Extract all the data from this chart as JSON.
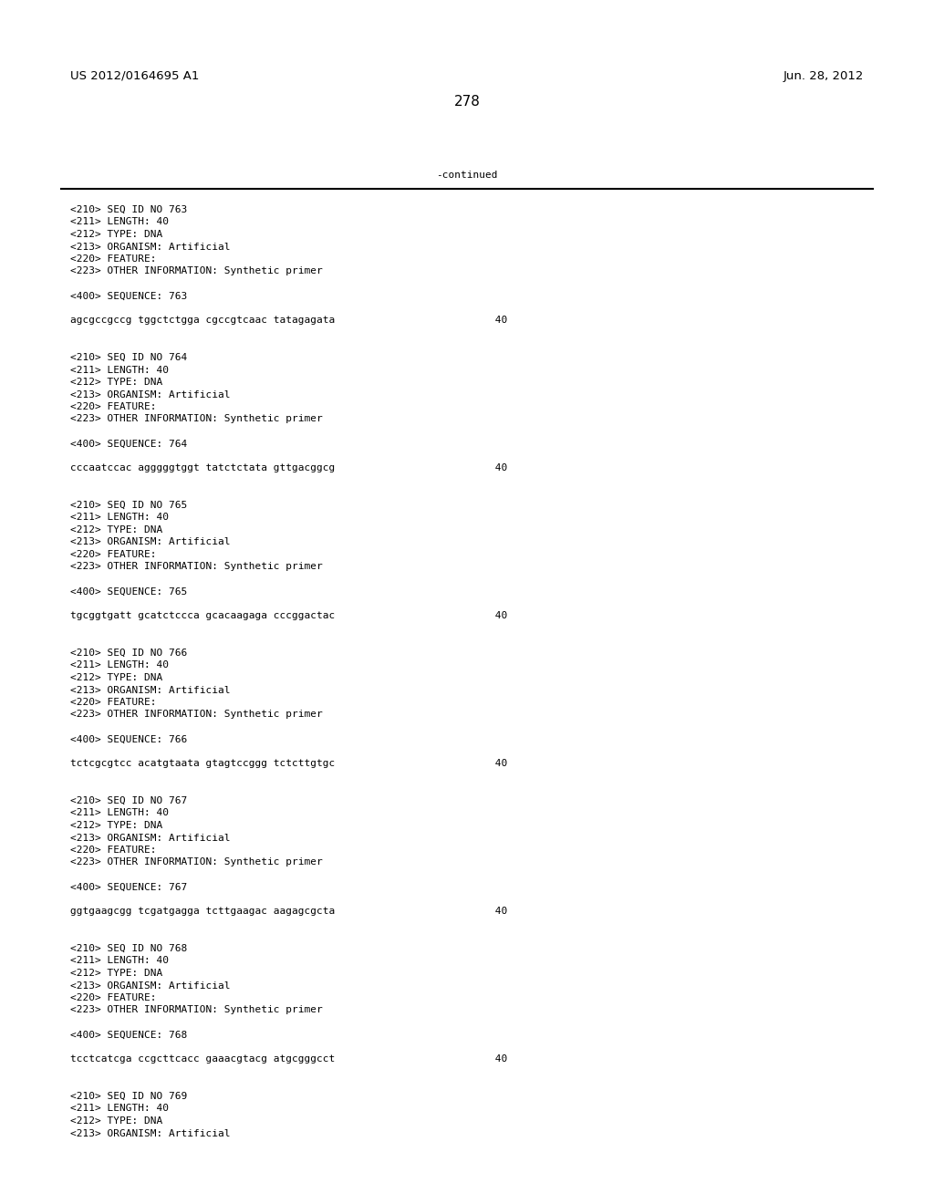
{
  "header_left": "US 2012/0164695 A1",
  "header_right": "Jun. 28, 2012",
  "page_number": "278",
  "continued_label": "-continued",
  "background_color": "#ffffff",
  "text_color": "#000000",
  "font_size_header": 9.5,
  "font_size_body": 8.0,
  "font_size_page": 11,
  "lines": [
    "<210> SEQ ID NO 763",
    "<211> LENGTH: 40",
    "<212> TYPE: DNA",
    "<213> ORGANISM: Artificial",
    "<220> FEATURE:",
    "<223> OTHER INFORMATION: Synthetic primer",
    "",
    "<400> SEQUENCE: 763",
    "",
    "agcgccgccg tggctctgga cgccgtcaac tatagagata                          40",
    "",
    "",
    "<210> SEQ ID NO 764",
    "<211> LENGTH: 40",
    "<212> TYPE: DNA",
    "<213> ORGANISM: Artificial",
    "<220> FEATURE:",
    "<223> OTHER INFORMATION: Synthetic primer",
    "",
    "<400> SEQUENCE: 764",
    "",
    "cccaatccac agggggtggt tatctctata gttgacggcg                          40",
    "",
    "",
    "<210> SEQ ID NO 765",
    "<211> LENGTH: 40",
    "<212> TYPE: DNA",
    "<213> ORGANISM: Artificial",
    "<220> FEATURE:",
    "<223> OTHER INFORMATION: Synthetic primer",
    "",
    "<400> SEQUENCE: 765",
    "",
    "tgcggtgatt gcatctccca gcacaagaga cccggactac                          40",
    "",
    "",
    "<210> SEQ ID NO 766",
    "<211> LENGTH: 40",
    "<212> TYPE: DNA",
    "<213> ORGANISM: Artificial",
    "<220> FEATURE:",
    "<223> OTHER INFORMATION: Synthetic primer",
    "",
    "<400> SEQUENCE: 766",
    "",
    "tctcgcgtcc acatgtaata gtagtccggg tctcttgtgc                          40",
    "",
    "",
    "<210> SEQ ID NO 767",
    "<211> LENGTH: 40",
    "<212> TYPE: DNA",
    "<213> ORGANISM: Artificial",
    "<220> FEATURE:",
    "<223> OTHER INFORMATION: Synthetic primer",
    "",
    "<400> SEQUENCE: 767",
    "",
    "ggtgaagcgg tcgatgagga tcttgaagac aagagcgcta                          40",
    "",
    "",
    "<210> SEQ ID NO 768",
    "<211> LENGTH: 40",
    "<212> TYPE: DNA",
    "<213> ORGANISM: Artificial",
    "<220> FEATURE:",
    "<223> OTHER INFORMATION: Synthetic primer",
    "",
    "<400> SEQUENCE: 768",
    "",
    "tcctcatcga ccgcttcacc gaaacgtacg atgcgggcct                          40",
    "",
    "",
    "<210> SEQ ID NO 769",
    "<211> LENGTH: 40",
    "<212> TYPE: DNA",
    "<213> ORGANISM: Artificial"
  ]
}
